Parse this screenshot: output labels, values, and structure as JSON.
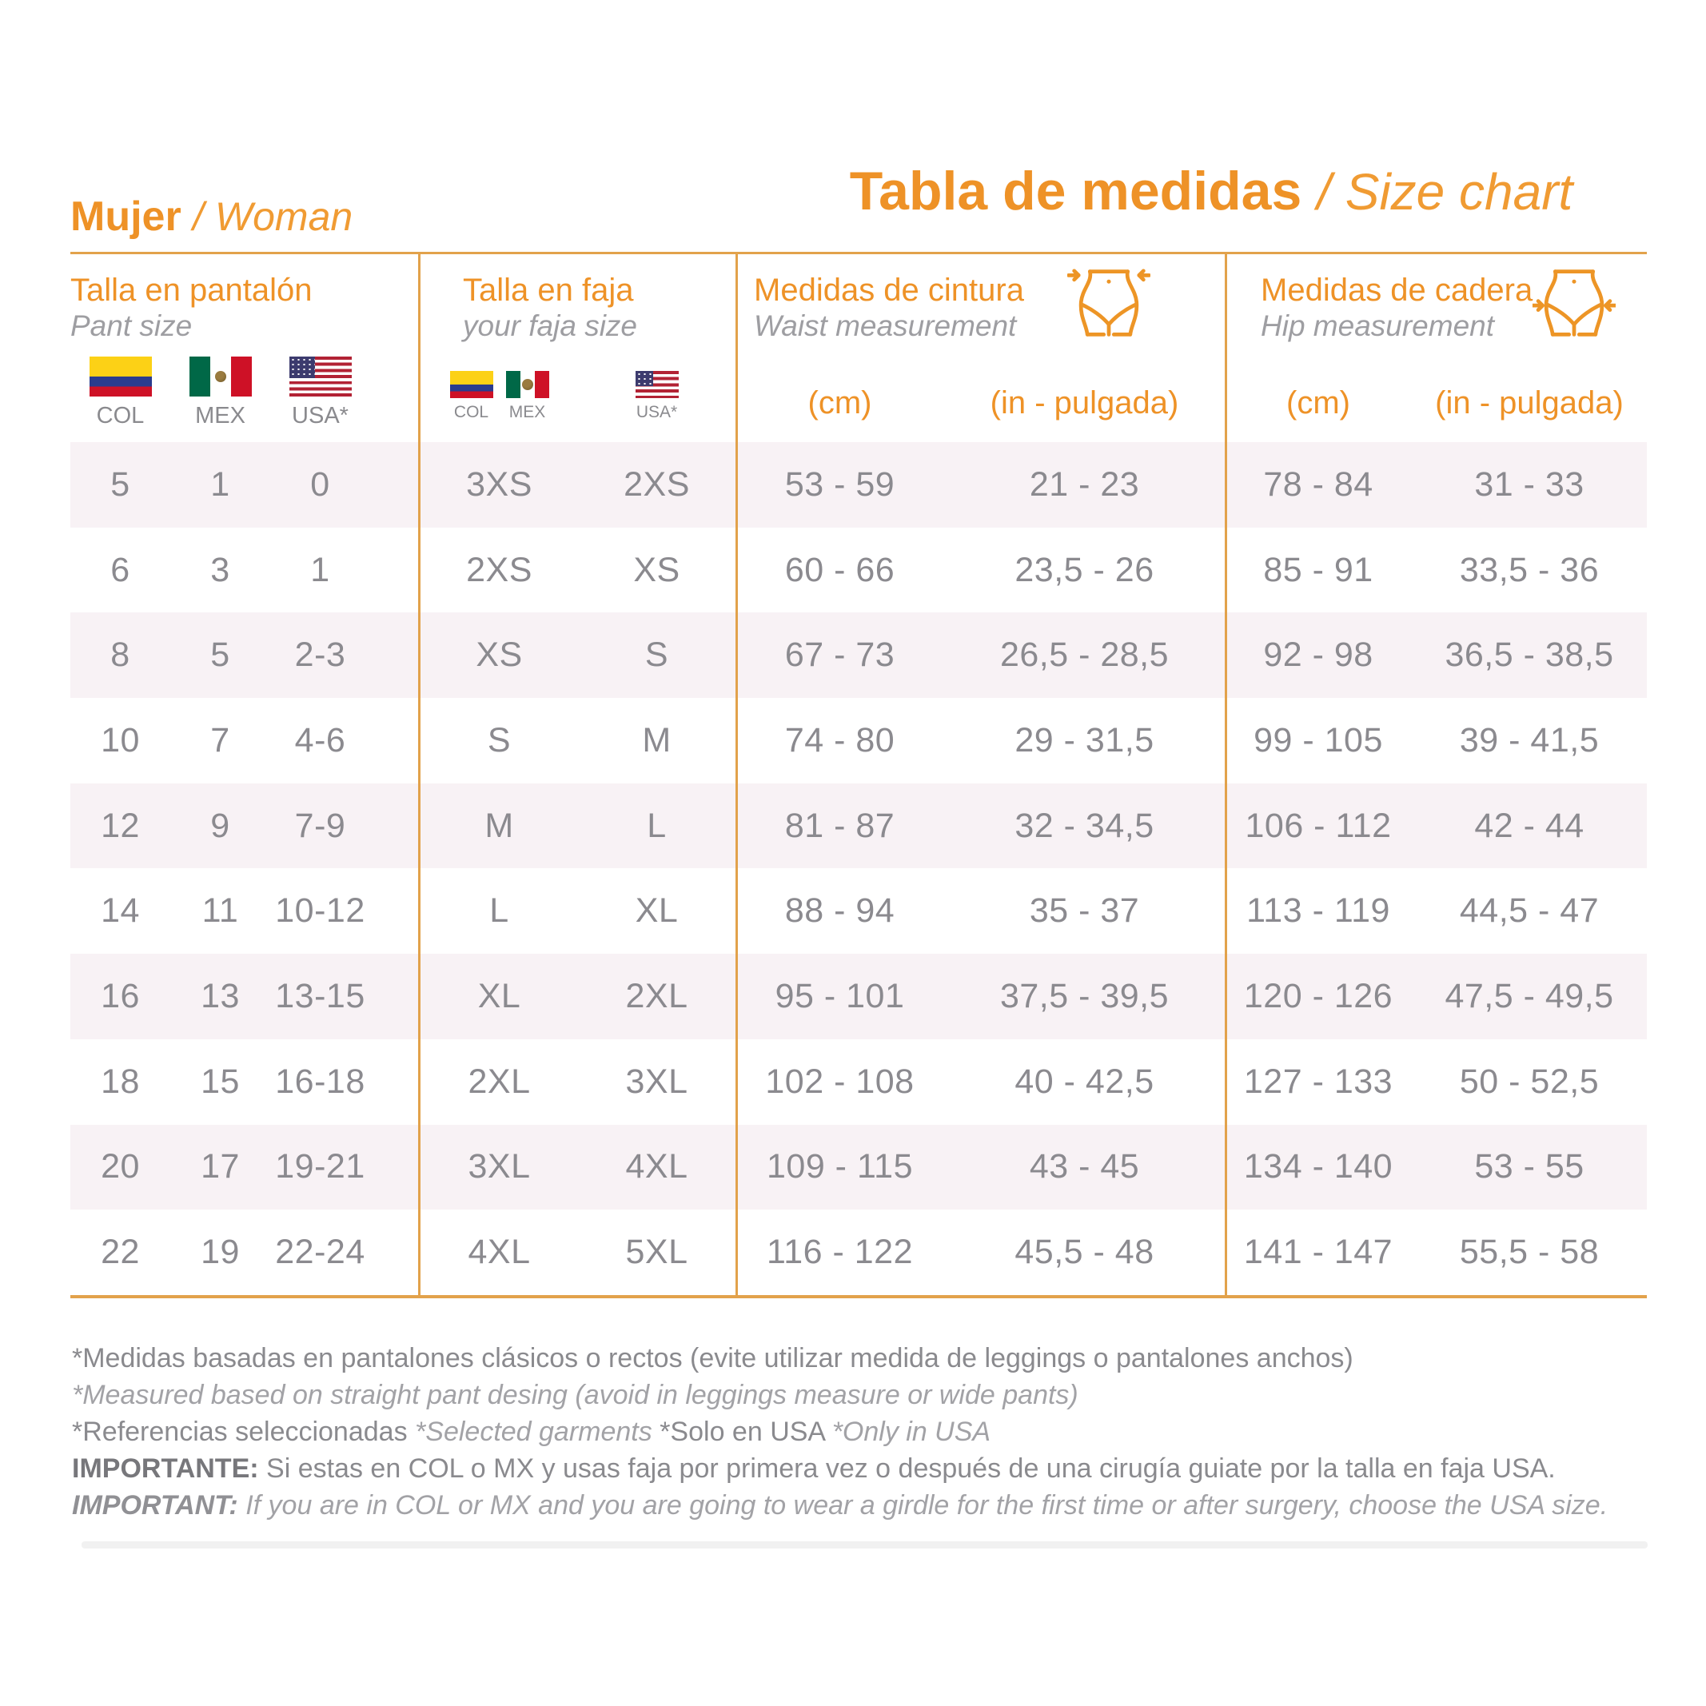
{
  "titles": {
    "left_bold": "Mujer",
    "left_italic": "/ Woman",
    "main_bold": "Tabla de medidas",
    "main_italic": "/ Size chart"
  },
  "table": {
    "columns": [
      {
        "id": "pant",
        "title_es": "Talla en pantalón",
        "title_en": "Pant size",
        "flags": [
          {
            "country": "Colombia",
            "label": "COL"
          },
          {
            "country": "Mexico",
            "label": "MEX"
          },
          {
            "country": "USA",
            "label": "USA*"
          }
        ]
      },
      {
        "id": "faja",
        "title_es": "Talla en faja",
        "title_en": "your faja size",
        "flags": [
          {
            "country": "Colombia",
            "label": "COL"
          },
          {
            "country": "Mexico",
            "label": "MEX"
          },
          {
            "country": "USA",
            "label": "USA*"
          }
        ]
      },
      {
        "id": "waist",
        "title_es": "Medidas de cintura",
        "title_en": "Waist measurement",
        "units": [
          "(cm)",
          "(in - pulgada)"
        ]
      },
      {
        "id": "hip",
        "title_es": "Medidas de cadera",
        "title_en": "Hip measurement",
        "units": [
          "(cm)",
          "(in - pulgada)"
        ]
      }
    ],
    "rows": [
      {
        "pant_col": "5",
        "pant_mex": "1",
        "pant_usa": "0",
        "faja_colmex": "3XS",
        "faja_usa": "2XS",
        "waist_cm": "53 - 59",
        "waist_in": "21 - 23",
        "hip_cm": "78 - 84",
        "hip_in": "31 - 33"
      },
      {
        "pant_col": "6",
        "pant_mex": "3",
        "pant_usa": "1",
        "faja_colmex": "2XS",
        "faja_usa": "XS",
        "waist_cm": "60 - 66",
        "waist_in": "23,5 - 26",
        "hip_cm": "85 - 91",
        "hip_in": "33,5 - 36"
      },
      {
        "pant_col": "8",
        "pant_mex": "5",
        "pant_usa": "2-3",
        "faja_colmex": "XS",
        "faja_usa": "S",
        "waist_cm": "67 - 73",
        "waist_in": "26,5 - 28,5",
        "hip_cm": "92 - 98",
        "hip_in": "36,5 - 38,5"
      },
      {
        "pant_col": "10",
        "pant_mex": "7",
        "pant_usa": "4-6",
        "faja_colmex": "S",
        "faja_usa": "M",
        "waist_cm": "74 - 80",
        "waist_in": "29 - 31,5",
        "hip_cm": "99 - 105",
        "hip_in": "39 - 41,5"
      },
      {
        "pant_col": "12",
        "pant_mex": "9",
        "pant_usa": "7-9",
        "faja_colmex": "M",
        "faja_usa": "L",
        "waist_cm": "81 - 87",
        "waist_in": "32 - 34,5",
        "hip_cm": "106 - 112",
        "hip_in": "42 - 44"
      },
      {
        "pant_col": "14",
        "pant_mex": "11",
        "pant_usa": "10-12",
        "faja_colmex": "L",
        "faja_usa": "XL",
        "waist_cm": "88 - 94",
        "waist_in": "35 - 37",
        "hip_cm": "113 - 119",
        "hip_in": "44,5 - 47"
      },
      {
        "pant_col": "16",
        "pant_mex": "13",
        "pant_usa": "13-15",
        "faja_colmex": "XL",
        "faja_usa": "2XL",
        "waist_cm": "95 - 101",
        "waist_in": "37,5 - 39,5",
        "hip_cm": "120 - 126",
        "hip_in": "47,5 - 49,5"
      },
      {
        "pant_col": "18",
        "pant_mex": "15",
        "pant_usa": "16-18",
        "faja_colmex": "2XL",
        "faja_usa": "3XL",
        "waist_cm": "102 - 108",
        "waist_in": "40 - 42,5",
        "hip_cm": "127 - 133",
        "hip_in": "50 - 52,5"
      },
      {
        "pant_col": "20",
        "pant_mex": "17",
        "pant_usa": "19-21",
        "faja_colmex": "3XL",
        "faja_usa": "4XL",
        "waist_cm": "109 - 115",
        "waist_in": "43 - 45",
        "hip_cm": "134 - 140",
        "hip_in": "53 - 55"
      },
      {
        "pant_col": "22",
        "pant_mex": "19",
        "pant_usa": "22-24",
        "faja_colmex": "4XL",
        "faja_usa": "5XL",
        "waist_cm": "116 - 122",
        "waist_in": "45,5 - 48",
        "hip_cm": "141 - 147",
        "hip_in": "55,5 - 58"
      }
    ]
  },
  "footnotes": {
    "line1": "*Medidas basadas en pantalones clásicos o rectos (evite utilizar medida de leggings o pantalones anchos)",
    "line2": "*Measured based on straight pant desing (avoid in leggings measure or wide pants)",
    "line3_a": "*Referencias seleccionadas ",
    "line3_b": "*Selected garments ",
    "line3_c": "*Solo en USA ",
    "line3_d": "*Only in USA",
    "line4_label": "IMPORTANTE:",
    "line4_text": " Si estas en COL o MX y usas faja por primera vez o después de una cirugía guiate por la talla en faja USA.",
    "line5_label": "IMPORTANT:",
    "line5_text": " If you are in COL or MX and you are going to wear a girdle for the first time or after surgery, choose the USA size."
  },
  "icons": {
    "waist": "waist-measurement-icon",
    "hip": "hip-measurement-icon"
  },
  "colors": {
    "accent_orange": "#EE9227",
    "divider_orange": "#E2A24B",
    "row_pink": "#F8F2F5",
    "data_gray": "#8B8A8F",
    "subtitle_gray": "#9E9EA2",
    "note_gray": "#8A8A8E"
  }
}
